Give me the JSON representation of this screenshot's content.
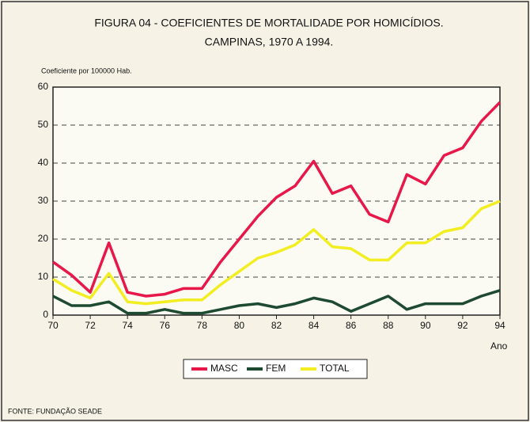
{
  "chart_data": {
    "type": "line",
    "title": "FIGURA 04 - COEFICIENTES DE MORTALIDADE  POR HOMICÍDIOS.",
    "subtitle": "CAMPINAS, 1970 A 1994.",
    "y_label": "Coeficiente por 100000 Hab.",
    "x_label": "Ano",
    "source": "FONTE: FUNDAÇÃO SEADE",
    "x": [
      70,
      71,
      72,
      73,
      74,
      75,
      76,
      77,
      78,
      79,
      80,
      81,
      82,
      83,
      84,
      85,
      86,
      87,
      88,
      89,
      90,
      91,
      92,
      93,
      94
    ],
    "series": [
      {
        "name": "MASC",
        "color": "#e8174a",
        "values": [
          14,
          10.5,
          6,
          19,
          6,
          5,
          5.5,
          7,
          7,
          14,
          20,
          26,
          31,
          34,
          40.5,
          32,
          34,
          26.5,
          24.5,
          37,
          34.5,
          42,
          44,
          51,
          56
        ]
      },
      {
        "name": "FEM",
        "color": "#1d4a30",
        "values": [
          5,
          2.5,
          2.5,
          3.5,
          0.5,
          0.5,
          1.5,
          0.5,
          0.5,
          1.5,
          2.5,
          3,
          2,
          3,
          4.5,
          3.5,
          1,
          3,
          5,
          1.5,
          3,
          3,
          3,
          5,
          6.5
        ]
      },
      {
        "name": "TOTAL",
        "color": "#f2ee22",
        "values": [
          9.5,
          6.5,
          4.5,
          11,
          3.5,
          3,
          3.5,
          4,
          4,
          8,
          11.5,
          15,
          16.5,
          18.5,
          22.5,
          18,
          17.5,
          14.5,
          14.5,
          19,
          19,
          22,
          23,
          28,
          30
        ]
      }
    ],
    "xlim": [
      70,
      94
    ],
    "xticks": [
      70,
      72,
      74,
      76,
      78,
      80,
      82,
      84,
      86,
      88,
      90,
      92,
      94
    ],
    "ylim": [
      0,
      60
    ],
    "yticks": [
      0,
      10,
      20,
      30,
      40,
      50,
      60
    ],
    "grid": true,
    "legend": "bottom"
  }
}
